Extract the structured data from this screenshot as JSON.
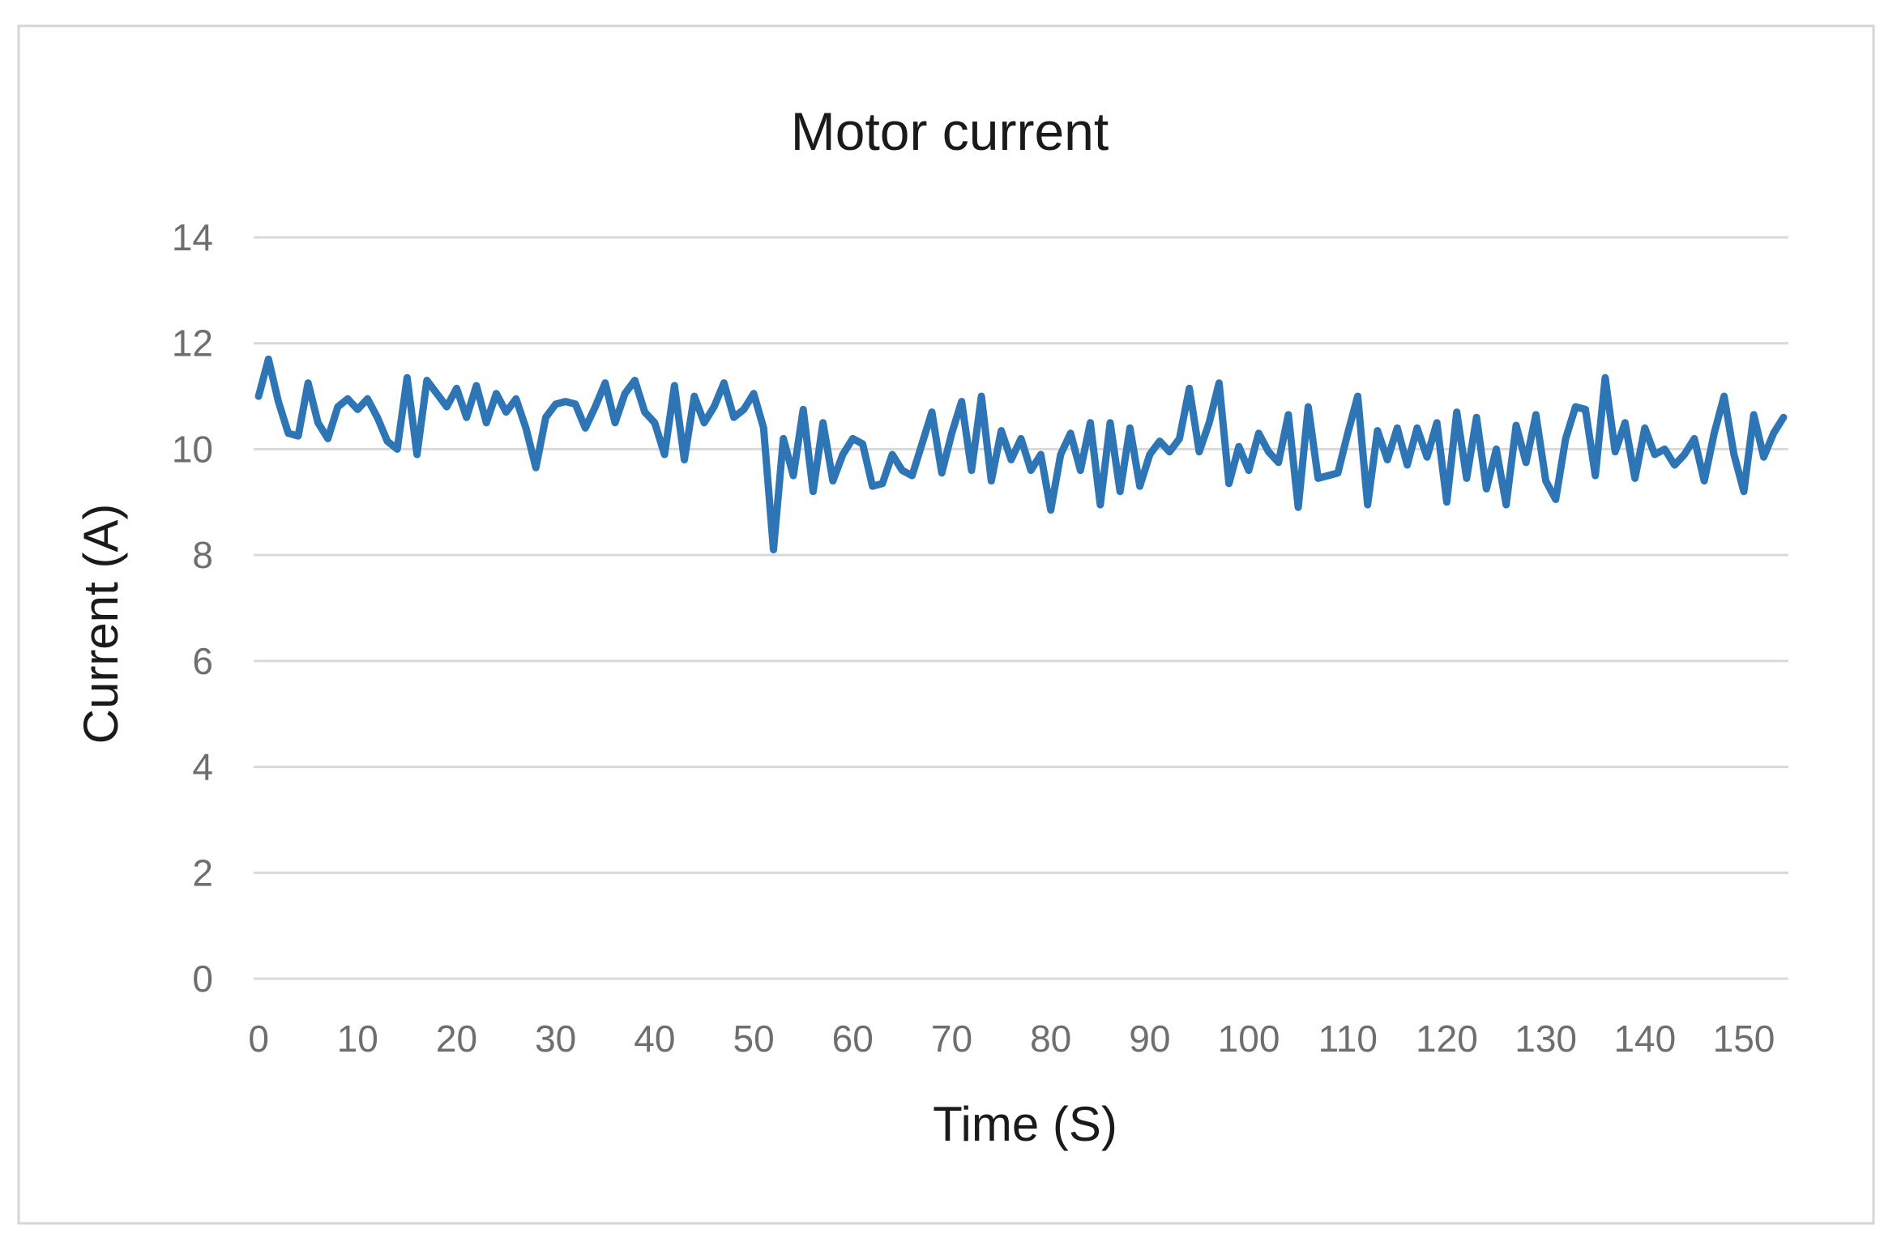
{
  "figure": {
    "title": "Motor current",
    "x_axis_title": "Time (S)",
    "y_axis_title": "Current (A)"
  },
  "chart_data": {
    "type": "line",
    "title": "Motor current",
    "xlabel": "Time (S)",
    "ylabel": "Current (A)",
    "x_unit": "seconds",
    "x_start": 0,
    "x_step": 1,
    "xlim": [
      0,
      154
    ],
    "ylim": [
      0,
      14
    ],
    "x_ticks": [
      0,
      10,
      20,
      30,
      40,
      50,
      60,
      70,
      80,
      90,
      100,
      110,
      120,
      130,
      140,
      150
    ],
    "y_ticks": [
      0,
      2,
      4,
      6,
      8,
      10,
      12,
      14
    ],
    "grid": "horizontal",
    "legend": "none",
    "series": [
      {
        "name": "Motor current",
        "color": "#2E75B6",
        "values": [
          11.0,
          11.7,
          10.9,
          10.3,
          10.25,
          11.25,
          10.5,
          10.2,
          10.8,
          10.95,
          10.75,
          10.95,
          10.6,
          10.15,
          10.0,
          11.35,
          9.9,
          11.3,
          11.05,
          10.8,
          11.15,
          10.6,
          11.2,
          10.5,
          11.05,
          10.7,
          10.95,
          10.4,
          9.65,
          10.6,
          10.85,
          10.9,
          10.85,
          10.4,
          10.8,
          11.25,
          10.5,
          11.05,
          11.3,
          10.7,
          10.5,
          9.9,
          11.2,
          9.8,
          11.0,
          10.5,
          10.8,
          11.25,
          10.6,
          10.75,
          11.05,
          10.4,
          8.1,
          10.2,
          9.5,
          10.75,
          9.2,
          10.5,
          9.4,
          9.9,
          10.2,
          10.1,
          9.3,
          9.35,
          9.9,
          9.6,
          9.5,
          10.1,
          10.7,
          9.55,
          10.3,
          10.9,
          9.6,
          11.0,
          9.4,
          10.35,
          9.8,
          10.2,
          9.6,
          9.9,
          8.85,
          9.9,
          10.3,
          9.6,
          10.5,
          8.95,
          10.5,
          9.2,
          10.4,
          9.3,
          9.9,
          10.15,
          9.95,
          10.2,
          11.15,
          9.95,
          10.5,
          11.25,
          9.35,
          10.05,
          9.6,
          10.3,
          9.95,
          9.75,
          10.65,
          8.9,
          10.8,
          9.45,
          9.5,
          9.55,
          10.3,
          11.0,
          8.95,
          10.35,
          9.8,
          10.4,
          9.7,
          10.4,
          9.85,
          10.5,
          9.0,
          10.7,
          9.45,
          10.6,
          9.25,
          10.0,
          8.95,
          10.45,
          9.75,
          10.65,
          9.4,
          9.05,
          10.2,
          10.8,
          10.75,
          9.5,
          11.35,
          9.95,
          10.5,
          9.45,
          10.4,
          9.9,
          10.0,
          9.7,
          9.9,
          10.2,
          9.4,
          10.3,
          11.0,
          9.9,
          9.2,
          10.65,
          9.85,
          10.3,
          10.6
        ]
      }
    ]
  },
  "style": {
    "line_color": "#2E75B6",
    "gridline_color": "#D9D9D9",
    "tick_label_color": "#6E6E6E",
    "title_color": "#1A1A1A",
    "axis_title_color": "#1A1A1A",
    "frame_border_color": "#D6D6D6",
    "background_color": "#FFFFFF"
  }
}
